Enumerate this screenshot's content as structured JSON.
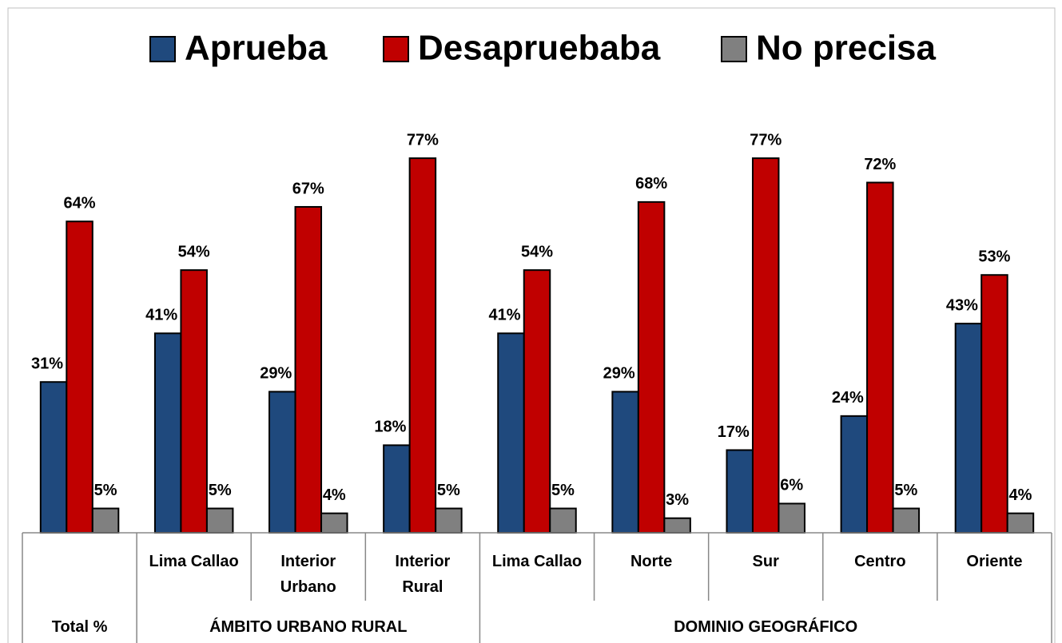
{
  "chart_data": {
    "type": "bar",
    "groups": [
      {
        "name": "Total %",
        "categories": [
          null
        ]
      },
      {
        "name": "ÁMBITO URBANO RURAL",
        "categories": [
          "Lima Callao",
          "Interior Urbano",
          "Interior Rural"
        ]
      },
      {
        "name": "DOMINIO GEOGRÁFICO",
        "categories": [
          "Lima Callao",
          "Norte",
          "Sur",
          "Centro",
          "Oriente"
        ]
      }
    ],
    "series": [
      {
        "name": "Aprueba",
        "color": "#1f497d",
        "values": [
          31,
          41,
          29,
          18,
          41,
          29,
          17,
          24,
          43
        ],
        "value_labels": [
          "31%",
          "41%",
          "29%",
          "18%",
          "41%",
          "29%",
          "17%",
          "24%",
          "43%"
        ]
      },
      {
        "name": "Desapruebaba",
        "color": "#c00000",
        "values": [
          64,
          54,
          67,
          77,
          54,
          68,
          77,
          72,
          53
        ],
        "value_labels": [
          "64%",
          "54%",
          "67%",
          "77%",
          "54%",
          "68%",
          "77%",
          "72%",
          "53%"
        ]
      },
      {
        "name": "No precisa",
        "color": "#808080",
        "values": [
          5,
          5,
          4,
          5,
          5,
          3,
          6,
          5,
          4
        ],
        "value_labels": [
          "5%",
          "5%",
          "4%",
          "5%",
          "5%",
          "3%",
          "6%",
          "5%",
          "4%"
        ]
      }
    ]
  }
}
